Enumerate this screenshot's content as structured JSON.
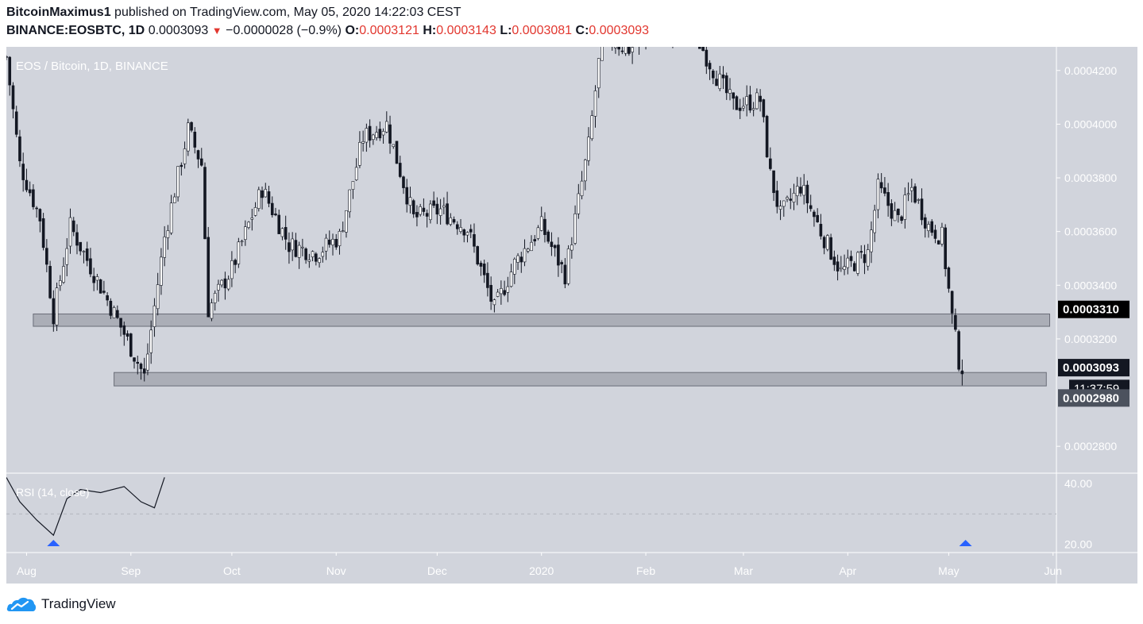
{
  "header": {
    "author": "BitcoinMaximus1",
    "published_text": "published on TradingView.com, May 05, 2020 14:22:03 CEST",
    "symbol": "BINANCE:EOSBTC, 1D",
    "last": "0.0003093",
    "change": "−0.0000028 (−0.9%)",
    "o_label": "O:",
    "o_value": "0.0003121",
    "h_label": "H:",
    "h_value": "0.0003143",
    "l_label": "L:",
    "l_value": "0.0003081",
    "c_label": "C:",
    "c_value": "0.0003093"
  },
  "footer": {
    "brand": "TradingView"
  },
  "chart_data": {
    "type": "candlestick",
    "title": "EOS / Bitcoin, 1D, BINANCE",
    "y_range": [
      0.00027,
      0.0004288
    ],
    "y_ticks": [
      "0.0004200",
      "0.0004000",
      "0.0003800",
      "0.0003600",
      "0.0003400",
      "0.0003200",
      "0.0002800"
    ],
    "y_tick_values": [
      0.00042,
      0.0004,
      0.00038,
      0.00036,
      0.00034,
      0.00032,
      0.00028
    ],
    "x_range": [
      "2019-07-26",
      "2020-06-02"
    ],
    "x_labels": [
      {
        "label": "Aug",
        "date": "2019-08-01"
      },
      {
        "label": "Sep",
        "date": "2019-09-01"
      },
      {
        "label": "Oct",
        "date": "2019-10-01"
      },
      {
        "label": "Nov",
        "date": "2019-11-01"
      },
      {
        "label": "Dec",
        "date": "2019-12-01"
      },
      {
        "label": "2020",
        "date": "2020-01-01"
      },
      {
        "label": "Feb",
        "date": "2020-02-01"
      },
      {
        "label": "Mar",
        "date": "2020-03-01"
      },
      {
        "label": "Apr",
        "date": "2020-04-01"
      },
      {
        "label": "May",
        "date": "2020-05-01"
      },
      {
        "label": "Jun",
        "date": "2020-06-01"
      }
    ],
    "price_labels": [
      {
        "value": "0.0003310",
        "price": 0.000331,
        "bg": "#000000"
      },
      {
        "value": "0.0003093",
        "price": 0.0003093,
        "bg": "#131722"
      },
      {
        "value": "11:37:59",
        "price": 0.00030155,
        "bg": "#131722"
      },
      {
        "value": "0.0002980",
        "price": 0.000298,
        "bg": "#4c525e"
      }
    ],
    "support_zones": [
      {
        "from": "2019-08-03",
        "to": "2020-05-31",
        "low": 0.0003247,
        "high": 0.0003293
      },
      {
        "from": "2019-08-27",
        "to": "2020-05-30",
        "low": 0.0003025,
        "high": 0.0003075
      }
    ],
    "key_points": [
      {
        "date": "2019-07-26",
        "price": 0.000425
      },
      {
        "date": "2019-07-30",
        "price": 0.000385
      },
      {
        "date": "2019-08-05",
        "price": 0.000365
      },
      {
        "date": "2019-08-09",
        "price": 0.000329
      },
      {
        "date": "2019-08-14",
        "price": 0.000362
      },
      {
        "date": "2019-08-22",
        "price": 0.000342
      },
      {
        "date": "2019-08-30",
        "price": 0.000322
      },
      {
        "date": "2019-09-05",
        "price": 0.000306
      },
      {
        "date": "2019-09-11",
        "price": 0.000358
      },
      {
        "date": "2019-09-18",
        "price": 0.000398
      },
      {
        "date": "2019-09-22",
        "price": 0.000385
      },
      {
        "date": "2019-09-24",
        "price": 0.000331
      },
      {
        "date": "2019-10-01",
        "price": 0.000346
      },
      {
        "date": "2019-10-10",
        "price": 0.000376
      },
      {
        "date": "2019-10-18",
        "price": 0.000355
      },
      {
        "date": "2019-10-26",
        "price": 0.000352
      },
      {
        "date": "2019-11-02",
        "price": 0.000358
      },
      {
        "date": "2019-11-09",
        "price": 0.000395
      },
      {
        "date": "2019-11-16",
        "price": 0.0004
      },
      {
        "date": "2019-11-24",
        "price": 0.000365
      },
      {
        "date": "2019-12-02",
        "price": 0.000368
      },
      {
        "date": "2019-12-10",
        "price": 0.000361
      },
      {
        "date": "2019-12-18",
        "price": 0.000331
      },
      {
        "date": "2019-12-24",
        "price": 0.000348
      },
      {
        "date": "2020-01-01",
        "price": 0.000362
      },
      {
        "date": "2020-01-08",
        "price": 0.000344
      },
      {
        "date": "2020-01-15",
        "price": 0.000392
      },
      {
        "date": "2020-01-19",
        "price": 0.000433
      },
      {
        "date": "2020-01-27",
        "price": 0.000428
      },
      {
        "date": "2020-02-05",
        "price": 0.000435
      },
      {
        "date": "2020-02-15",
        "price": 0.000435
      },
      {
        "date": "2020-02-22",
        "price": 0.000418
      },
      {
        "date": "2020-02-27",
        "price": 0.000407
      },
      {
        "date": "2020-03-06",
        "price": 0.000409
      },
      {
        "date": "2020-03-09",
        "price": 0.000381
      },
      {
        "date": "2020-03-12",
        "price": 0.000366
      },
      {
        "date": "2020-03-18",
        "price": 0.000377
      },
      {
        "date": "2020-03-24",
        "price": 0.00036
      },
      {
        "date": "2020-03-30",
        "price": 0.000345
      },
      {
        "date": "2020-04-07",
        "price": 0.000352
      },
      {
        "date": "2020-04-10",
        "price": 0.000376
      },
      {
        "date": "2020-04-16",
        "price": 0.000364
      },
      {
        "date": "2020-04-20",
        "price": 0.000376
      },
      {
        "date": "2020-04-25",
        "price": 0.000362
      },
      {
        "date": "2020-04-29",
        "price": 0.000358
      },
      {
        "date": "2020-05-02",
        "price": 0.000328
      },
      {
        "date": "2020-05-04",
        "price": 0.000312
      },
      {
        "date": "2020-05-05",
        "price": 0.0003093
      }
    ],
    "rsi": {
      "title": "RSI (14, close)",
      "y_range": [
        17.3,
        43.4
      ],
      "y_ticks": [
        "40.00",
        "20.00"
      ],
      "y_tick_values": [
        40,
        20
      ],
      "oversold": 30,
      "points": [
        {
          "date": "2019-07-26",
          "value": 42
        },
        {
          "date": "2019-07-30",
          "value": 34
        },
        {
          "date": "2019-08-04",
          "value": 28
        },
        {
          "date": "2019-08-09",
          "value": 23
        },
        {
          "date": "2019-08-13",
          "value": 35
        },
        {
          "date": "2019-08-17",
          "value": 38
        },
        {
          "date": "2019-08-23",
          "value": 37
        },
        {
          "date": "2019-08-30",
          "value": 39
        },
        {
          "date": "2019-09-04",
          "value": 34
        },
        {
          "date": "2019-09-08",
          "value": 32
        },
        {
          "date": "2019-09-11",
          "value": 42
        }
      ],
      "signals": [
        {
          "date": "2019-08-09",
          "color": "#2962ff"
        },
        {
          "date": "2020-05-06",
          "color": "#2962ff"
        }
      ]
    },
    "colors": {
      "background": "#d1d4dc",
      "candle": "#131722",
      "zone": "#9598a1"
    },
    "grid": false
  }
}
